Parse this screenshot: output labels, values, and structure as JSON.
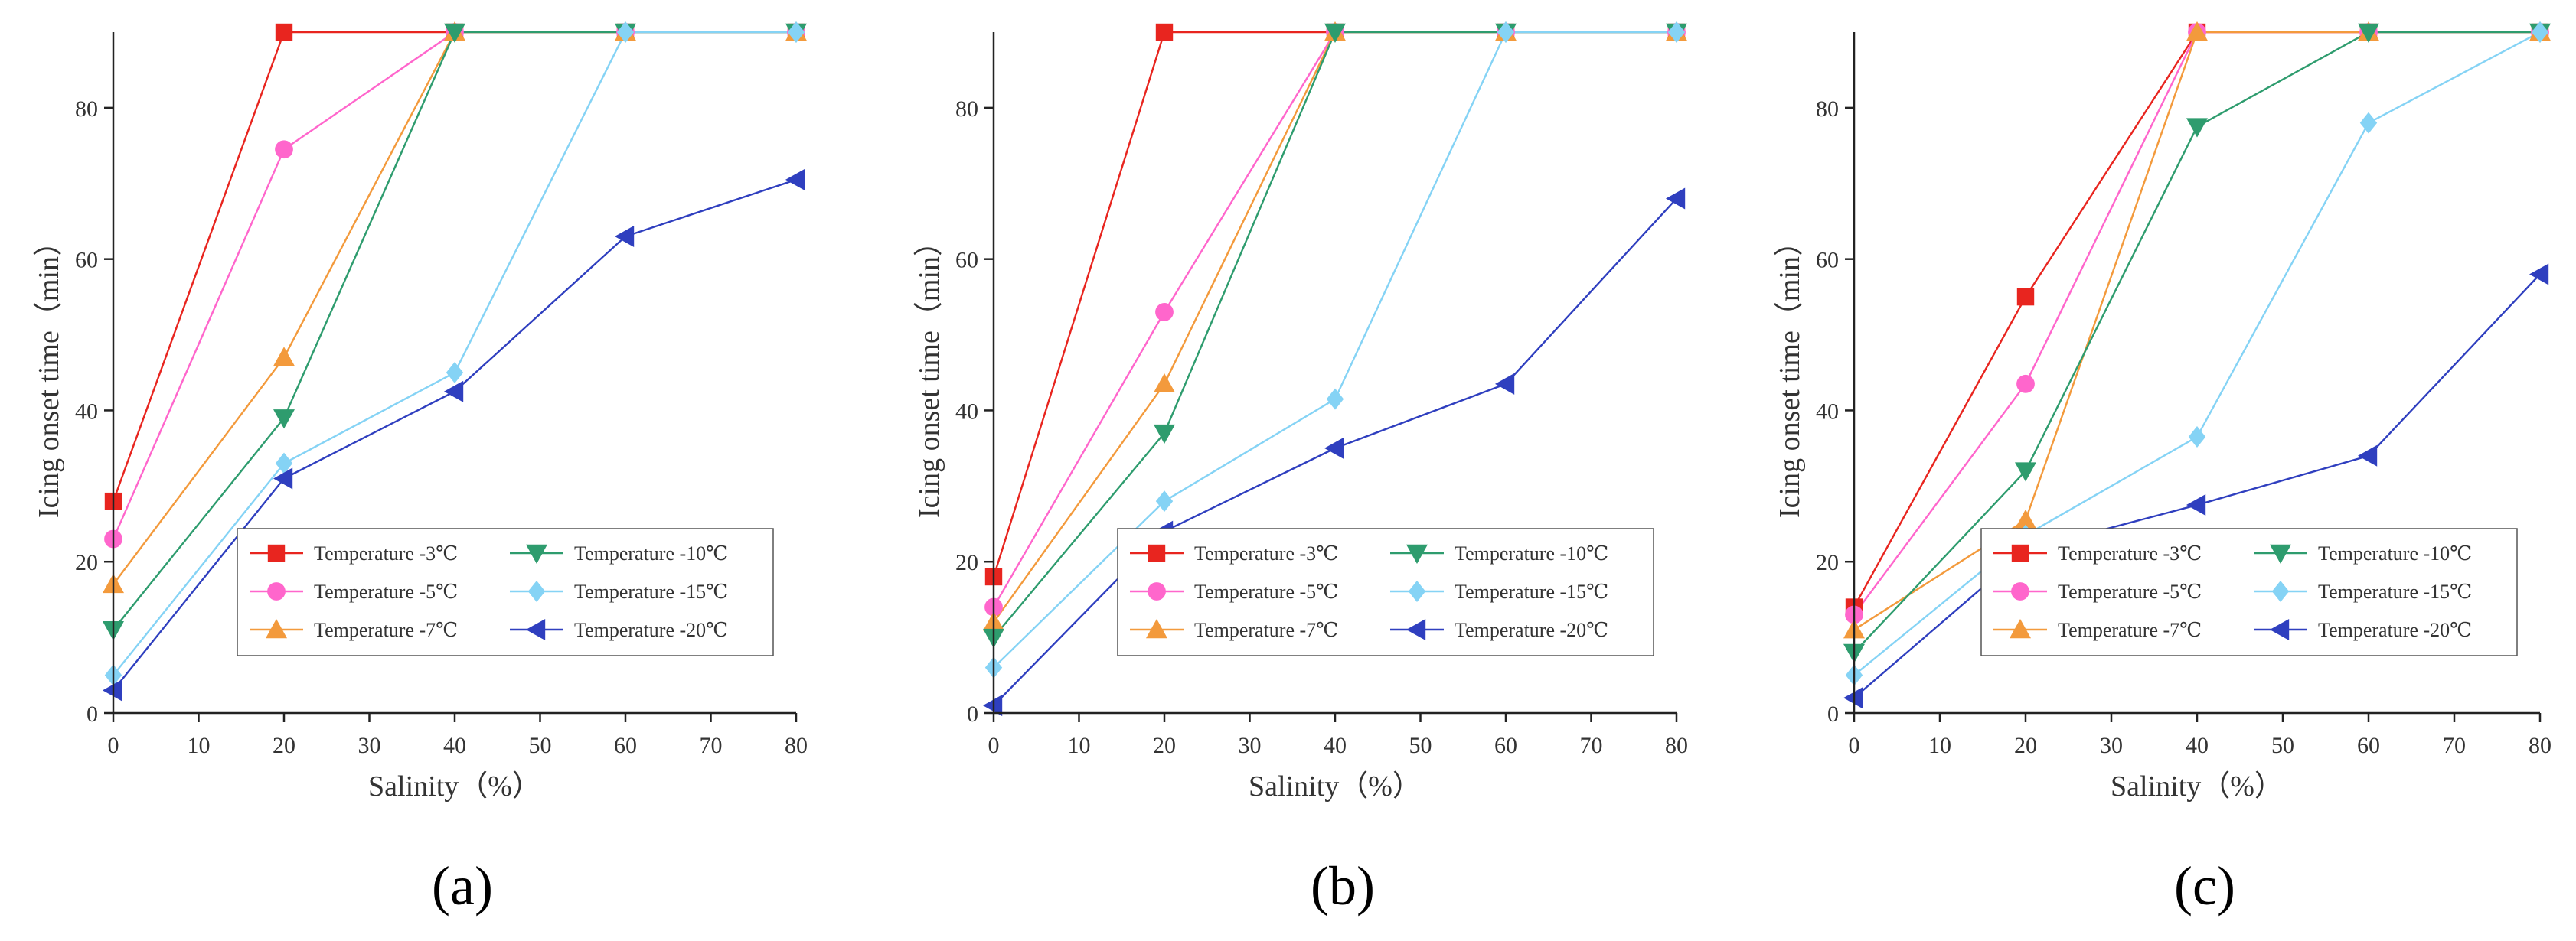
{
  "chart_data": [
    {
      "panel_label": "(a)",
      "type": "line",
      "xlabel": "Salinity（%）",
      "ylabel": "Icing onset time（min）",
      "xlim": [
        0,
        80
      ],
      "ylim": [
        0,
        90
      ],
      "xticks": [
        0,
        10,
        20,
        30,
        40,
        50,
        60,
        70,
        80
      ],
      "yticks": [
        0,
        20,
        40,
        60,
        80
      ],
      "x": [
        0,
        20,
        40,
        60,
        80
      ],
      "legend_position": "lower-right",
      "series": [
        {
          "name": "Temperature -3℃",
          "color": "#e8251f",
          "marker": "square",
          "values": [
            28,
            90,
            90,
            90,
            90
          ]
        },
        {
          "name": "Temperature -5℃",
          "color": "#ff66cc",
          "marker": "circle",
          "values": [
            23,
            74.5,
            90,
            90,
            90
          ]
        },
        {
          "name": "Temperature -7℃",
          "color": "#f39a3c",
          "marker": "triangle-up",
          "values": [
            17,
            47,
            90,
            90,
            90
          ]
        },
        {
          "name": "Temperature -10℃",
          "color": "#2e9c6e",
          "marker": "triangle-down",
          "values": [
            11,
            39,
            90,
            90,
            90
          ]
        },
        {
          "name": "Temperature -15℃",
          "color": "#85d3f5",
          "marker": "diamond",
          "values": [
            5,
            33,
            45,
            90,
            90
          ]
        },
        {
          "name": "Temperature -20℃",
          "color": "#2f3fbf",
          "marker": "triangle-left",
          "values": [
            3,
            31,
            42.5,
            63,
            70.5
          ]
        }
      ]
    },
    {
      "panel_label": "(b)",
      "type": "line",
      "xlabel": "Salinity（%）",
      "ylabel": "Icing onset time（min）",
      "xlim": [
        0,
        80
      ],
      "ylim": [
        0,
        90
      ],
      "xticks": [
        0,
        10,
        20,
        30,
        40,
        50,
        60,
        70,
        80
      ],
      "yticks": [
        0,
        20,
        40,
        60,
        80
      ],
      "x": [
        0,
        20,
        40,
        60,
        80
      ],
      "legend_position": "lower-right",
      "series": [
        {
          "name": "Temperature -3℃",
          "color": "#e8251f",
          "marker": "square",
          "values": [
            18,
            90,
            90,
            90,
            90
          ]
        },
        {
          "name": "Temperature -5℃",
          "color": "#ff66cc",
          "marker": "circle",
          "values": [
            14,
            53,
            90,
            90,
            90
          ]
        },
        {
          "name": "Temperature -7℃",
          "color": "#f39a3c",
          "marker": "triangle-up",
          "values": [
            12,
            43.5,
            90,
            90,
            90
          ]
        },
        {
          "name": "Temperature -10℃",
          "color": "#2e9c6e",
          "marker": "triangle-down",
          "values": [
            10,
            37,
            90,
            90,
            90
          ]
        },
        {
          "name": "Temperature -15℃",
          "color": "#85d3f5",
          "marker": "diamond",
          "values": [
            6,
            28,
            41.5,
            90,
            90
          ]
        },
        {
          "name": "Temperature -20℃",
          "color": "#2f3fbf",
          "marker": "triangle-left",
          "values": [
            1,
            24,
            35,
            43.5,
            68
          ]
        }
      ]
    },
    {
      "panel_label": "(c)",
      "type": "line",
      "xlabel": "Salinity（%）",
      "ylabel": "Icing onset time（min）",
      "xlim": [
        0,
        80
      ],
      "ylim": [
        0,
        90
      ],
      "xticks": [
        0,
        10,
        20,
        30,
        40,
        50,
        60,
        70,
        80
      ],
      "yticks": [
        0,
        20,
        40,
        60,
        80
      ],
      "x": [
        0,
        20,
        40,
        60,
        80
      ],
      "legend_position": "lower-right",
      "series": [
        {
          "name": "Temperature -3℃",
          "color": "#e8251f",
          "marker": "square",
          "values": [
            14,
            55,
            90,
            90,
            90
          ]
        },
        {
          "name": "Temperature -5℃",
          "color": "#ff66cc",
          "marker": "circle",
          "values": [
            13,
            43.5,
            90,
            90,
            90
          ]
        },
        {
          "name": "Temperature -7℃",
          "color": "#f39a3c",
          "marker": "triangle-up",
          "values": [
            11,
            25.5,
            90,
            90,
            90
          ]
        },
        {
          "name": "Temperature -10℃",
          "color": "#2e9c6e",
          "marker": "triangle-down",
          "values": [
            8,
            32,
            77.5,
            90,
            90
          ]
        },
        {
          "name": "Temperature -15℃",
          "color": "#85d3f5",
          "marker": "diamond",
          "values": [
            5,
            23.5,
            36.5,
            78,
            90
          ]
        },
        {
          "name": "Temperature -20℃",
          "color": "#2f3fbf",
          "marker": "triangle-left",
          "values": [
            2,
            21.5,
            27.5,
            34,
            58
          ]
        }
      ]
    }
  ]
}
